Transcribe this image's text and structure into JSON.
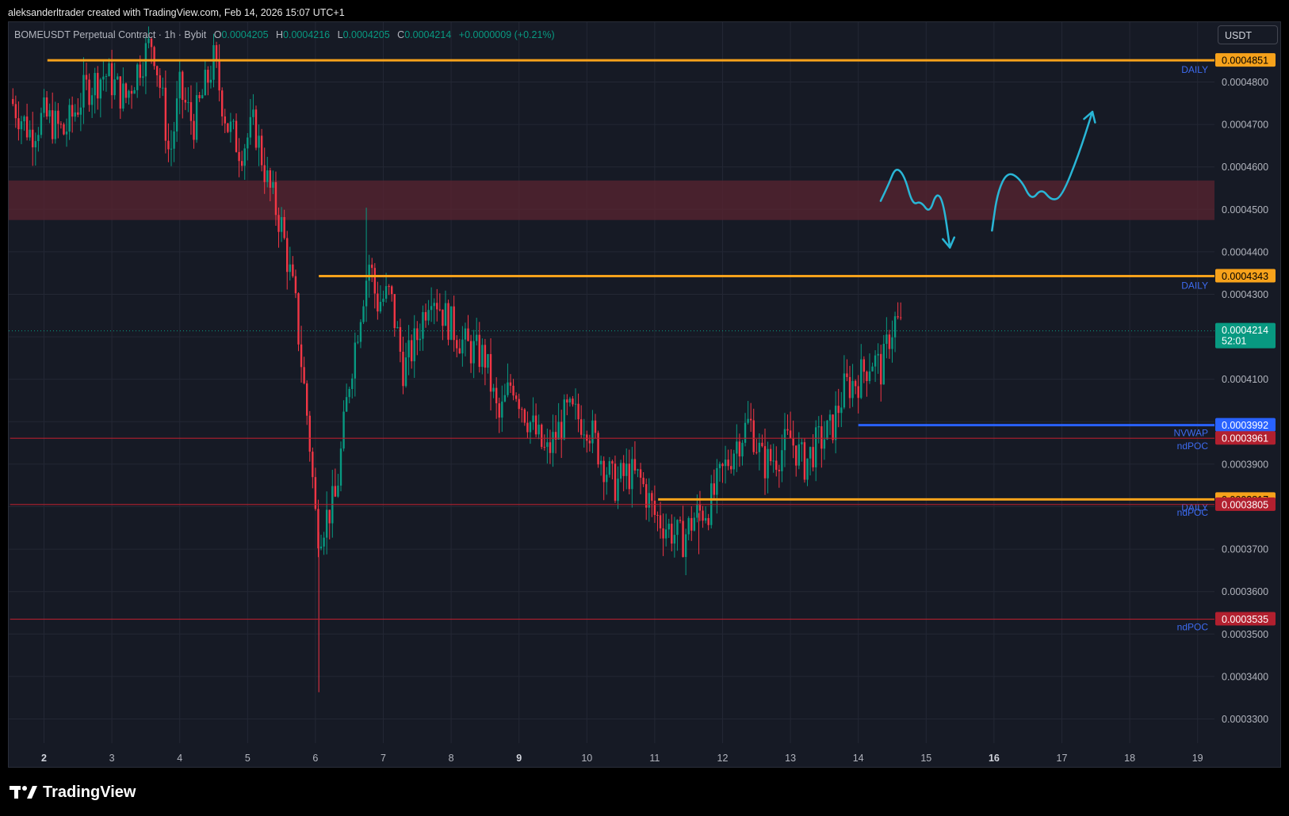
{
  "header": {
    "attribution": "aleksanderltrader created with TradingView.com, Feb 14, 2026 15:07 UTC+1"
  },
  "legend": {
    "symbol": "BOMEUSDT Perpetual Contract · 1h · Bybit",
    "open_key": "O",
    "open": "0.0004205",
    "high_key": "H",
    "high": "0.0004216",
    "low_key": "L",
    "low": "0.0004205",
    "close_key": "C",
    "close": "0.0004214",
    "change": "+0.0000009 (+0.21%)"
  },
  "currency": "USDT",
  "footer": {
    "logo_text": "TradingView"
  },
  "colors": {
    "background": "#161a25",
    "grid": "#232734",
    "up": "#089981",
    "down": "#f23645",
    "daily_level": "#f7a21b",
    "ndpoc": "#b2202f",
    "nvwap": "#2962ff",
    "zone": "#5a2430",
    "drawing": "#29b6d6"
  },
  "chart_data": {
    "type": "candlestick",
    "timeframe": "1h",
    "x_axis": {
      "ticks": [
        {
          "day": 2,
          "label": "2",
          "bold": true
        },
        {
          "day": 3,
          "label": "3",
          "bold": false
        },
        {
          "day": 4,
          "label": "4",
          "bold": false
        },
        {
          "day": 5,
          "label": "5",
          "bold": false
        },
        {
          "day": 6,
          "label": "6",
          "bold": false
        },
        {
          "day": 7,
          "label": "7",
          "bold": false
        },
        {
          "day": 8,
          "label": "8",
          "bold": false
        },
        {
          "day": 9,
          "label": "9",
          "bold": true
        },
        {
          "day": 10,
          "label": "10",
          "bold": false
        },
        {
          "day": 11,
          "label": "11",
          "bold": false
        },
        {
          "day": 12,
          "label": "12",
          "bold": false
        },
        {
          "day": 13,
          "label": "13",
          "bold": false
        },
        {
          "day": 14,
          "label": "14",
          "bold": false
        },
        {
          "day": 15,
          "label": "15",
          "bold": false
        },
        {
          "day": 16,
          "label": "16",
          "bold": true
        },
        {
          "day": 17,
          "label": "17",
          "bold": false
        },
        {
          "day": 18,
          "label": "18",
          "bold": false
        },
        {
          "day": 19,
          "label": "19",
          "bold": false
        }
      ],
      "range": [
        1.5,
        19.3
      ]
    },
    "y_axis": {
      "range": [
        0.000317,
        0.0004985
      ],
      "ticks": [
        "0.0004800",
        "0.0004700",
        "0.0004600",
        "0.0004500",
        "0.0004400",
        "0.0004300",
        "0.0004100",
        "0.0003900",
        "0.0003700",
        "0.0003600",
        "0.0003500",
        "0.0003400",
        "0.0003300"
      ]
    },
    "price_path": [
      [
        1.5,
        0.000476
      ],
      [
        1.8,
        0.000468
      ],
      [
        2.0,
        0.000472
      ],
      [
        2.3,
        0.000468
      ],
      [
        2.6,
        0.000478
      ],
      [
        2.9,
        0.000482
      ],
      [
        3.2,
        0.000476
      ],
      [
        3.4,
        0.000484
      ],
      [
        3.6,
        0.00049
      ],
      [
        3.75,
        0.000475
      ],
      [
        3.85,
        0.000462
      ],
      [
        4.0,
        0.000478
      ],
      [
        4.2,
        0.00047
      ],
      [
        4.5,
        0.000485
      ],
      [
        4.7,
        0.00047
      ],
      [
        4.9,
        0.000464
      ],
      [
        5.1,
        0.00047
      ],
      [
        5.3,
        0.000456
      ],
      [
        5.5,
        0.000446
      ],
      [
        5.7,
        0.000428
      ],
      [
        5.9,
        0.000398
      ],
      [
        6.0,
        0.000378
      ],
      [
        6.05,
        0.000374
      ],
      [
        6.3,
        0.000382
      ],
      [
        6.5,
        0.00041
      ],
      [
        6.7,
        0.00043
      ],
      [
        6.8,
        0.000438
      ],
      [
        6.9,
        0.000428
      ],
      [
        7.1,
        0.00043
      ],
      [
        7.3,
        0.000412
      ],
      [
        7.5,
        0.00042
      ],
      [
        7.7,
        0.000432
      ],
      [
        7.9,
        0.000425
      ],
      [
        8.2,
        0.000418
      ],
      [
        8.5,
        0.000415
      ],
      [
        8.7,
        0.0004
      ],
      [
        8.9,
        0.00041
      ],
      [
        9.1,
        0.000402
      ],
      [
        9.4,
        0.000392
      ],
      [
        9.7,
        0.000402
      ],
      [
        10.0,
        0.0004
      ],
      [
        10.2,
        0.000392
      ],
      [
        10.4,
        0.000385
      ],
      [
        10.6,
        0.000388
      ],
      [
        10.8,
        0.000386
      ],
      [
        11.0,
        0.000378
      ],
      [
        11.2,
        0.000375
      ],
      [
        11.4,
        0.000372
      ],
      [
        11.6,
        0.000378
      ],
      [
        11.8,
        0.00038
      ],
      [
        12.0,
        0.000388
      ],
      [
        12.2,
        0.000395
      ],
      [
        12.4,
        0.0004
      ],
      [
        12.6,
        0.00039
      ],
      [
        12.8,
        0.000392
      ],
      [
        13.0,
        0.000396
      ],
      [
        13.2,
        0.00039
      ],
      [
        13.4,
        0.000395
      ],
      [
        13.6,
        0.000398
      ],
      [
        13.8,
        0.000408
      ],
      [
        14.0,
        0.00041
      ],
      [
        14.2,
        0.000415
      ],
      [
        14.35,
        0.000412
      ],
      [
        14.45,
        0.00042
      ],
      [
        14.55,
        0.000424
      ],
      [
        14.65,
        0.0004214
      ]
    ],
    "spikes": [
      {
        "day": 6.05,
        "low": 0.0003363
      },
      {
        "day": 6.75,
        "high": 0.0004504
      },
      {
        "day": 11.65,
        "low": 0.0003688
      }
    ],
    "levels": [
      {
        "name": "daily-level-4851",
        "price": 0.0004851,
        "price_label": "0.0004851",
        "tag": "DAILY",
        "kind": "daily",
        "from_day": 2.05
      },
      {
        "name": "daily-level-4343",
        "price": 0.0004343,
        "price_label": "0.0004343",
        "tag": "DAILY",
        "kind": "daily",
        "from_day": 6.05
      },
      {
        "name": "nvwap-level-3992",
        "price": 0.0003992,
        "price_label": "0.0003992",
        "tag": "NVWAP",
        "kind": "nvwap",
        "from_day": 14.0
      },
      {
        "name": "ndpoc-level-3961",
        "price": 0.0003961,
        "price_label": "0.0003961",
        "tag": "ndPOC",
        "kind": "ndpoc",
        "from_day": 1.5
      },
      {
        "name": "daily-level-3817",
        "price": 0.0003817,
        "price_label": "0.0003817",
        "tag": "DAILY",
        "kind": "daily",
        "from_day": 11.05
      },
      {
        "name": "ndpoc-level-3805",
        "price": 0.0003805,
        "price_label": "0.0003805",
        "tag": "ndPOC",
        "kind": "ndpoc",
        "from_day": 1.5
      },
      {
        "name": "ndpoc-level-3535",
        "price": 0.0003535,
        "price_label": "0.0003535",
        "tag": "ndPOC",
        "kind": "ndpoc",
        "from_day": 1.5
      }
    ],
    "resistance_zone": {
      "top": 0.0004568,
      "bottom": 0.0004475
    },
    "last_price": {
      "price": 0.0004214,
      "price_label": "0.0004214",
      "countdown": "52:01"
    },
    "annotations": [
      {
        "name": "projection-drawing-down",
        "direction": "down",
        "path": [
          [
            14.33,
            0.000452
          ],
          [
            14.45,
            0.000456
          ],
          [
            14.55,
            0.00046
          ],
          [
            14.68,
            0.000458
          ],
          [
            14.8,
            0.000451
          ],
          [
            14.92,
            0.000452
          ],
          [
            15.05,
            0.000449
          ],
          [
            15.15,
            0.000454
          ],
          [
            15.25,
            0.000452
          ],
          [
            15.35,
            0.000441
          ]
        ]
      },
      {
        "name": "projection-drawing-up",
        "direction": "up",
        "path": [
          [
            15.97,
            0.000445
          ],
          [
            16.05,
            0.000454
          ],
          [
            16.2,
            0.000459
          ],
          [
            16.4,
            0.000457
          ],
          [
            16.55,
            0.000452
          ],
          [
            16.7,
            0.000455
          ],
          [
            16.85,
            0.000452
          ],
          [
            17.0,
            0.000453
          ],
          [
            17.25,
            0.000463
          ],
          [
            17.45,
            0.000473
          ]
        ]
      }
    ]
  }
}
